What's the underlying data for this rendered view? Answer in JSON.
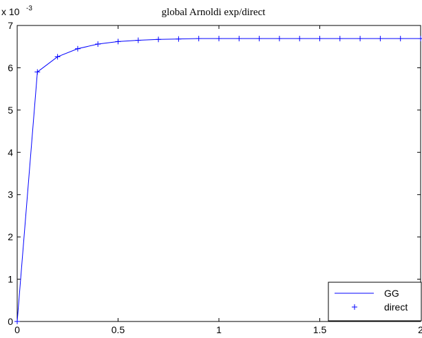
{
  "chart_data": {
    "type": "line",
    "title": "global Arnoldi exp/direct",
    "xlabel": "",
    "ylabel": "",
    "y_exponent_base": "x 10",
    "y_exponent_power": "-3",
    "xlim": [
      0,
      2
    ],
    "ylim": [
      0,
      7
    ],
    "x_ticks": [
      0,
      0.5,
      1,
      1.5,
      2
    ],
    "x_tick_labels": [
      "0",
      "0.5",
      "1",
      "1.5",
      "2"
    ],
    "y_ticks": [
      0,
      1,
      2,
      3,
      4,
      5,
      6,
      7
    ],
    "y_tick_labels": [
      "0",
      "1",
      "2",
      "3",
      "4",
      "5",
      "6",
      "7"
    ],
    "grid": false,
    "legend_position": "bottom-right",
    "x": [
      0,
      0.1,
      0.2,
      0.3,
      0.4,
      0.5,
      0.6,
      0.7,
      0.8,
      0.9,
      1.0,
      1.1,
      1.2,
      1.3,
      1.4,
      1.5,
      1.6,
      1.7,
      1.8,
      1.9,
      2.0
    ],
    "series": [
      {
        "name": "GG",
        "style": "line",
        "color": "#0000ff",
        "values": [
          0,
          5.9,
          6.26,
          6.45,
          6.56,
          6.62,
          6.65,
          6.67,
          6.68,
          6.69,
          6.69,
          6.69,
          6.69,
          6.69,
          6.69,
          6.69,
          6.69,
          6.69,
          6.69,
          6.69,
          6.69
        ]
      },
      {
        "name": "direct",
        "style": "plus-marker",
        "color": "#0000ff",
        "values": [
          0,
          5.9,
          6.26,
          6.45,
          6.56,
          6.62,
          6.65,
          6.67,
          6.68,
          6.69,
          6.69,
          6.69,
          6.69,
          6.69,
          6.69,
          6.69,
          6.69,
          6.69,
          6.69,
          6.69,
          6.69
        ]
      }
    ]
  }
}
